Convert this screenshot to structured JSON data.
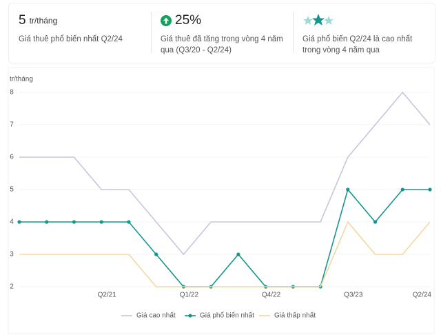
{
  "cards": [
    {
      "value": "5",
      "unit": "tr/tháng",
      "text": "Giá thuê phổ biến nhất Q2/24"
    },
    {
      "value": "25%",
      "text": "Giá thuê đã tăng trong vòng 4 năm qua (Q3/20 - Q2/24)"
    },
    {
      "text": "Giá phổ biến Q2/24 là cao nhất trong vòng 4 năm qua"
    }
  ],
  "chart_data": {
    "type": "line",
    "y_label": "tr/tháng",
    "categories": [
      null,
      null,
      null,
      "Q2/21",
      null,
      null,
      "Q1/22",
      null,
      null,
      "Q4/22",
      null,
      null,
      "Q3/23",
      null,
      null,
      "Q2/24"
    ],
    "series": [
      {
        "name": "Giá cao nhất",
        "color": "#cbc3de",
        "values": [
          6,
          6,
          6,
          5,
          5,
          4,
          3,
          4,
          4,
          4,
          4,
          4,
          6,
          7,
          8,
          7
        ]
      },
      {
        "name": "Giá phổ biến nhất",
        "color": "#13968f",
        "markers": true,
        "values": [
          4,
          4,
          4,
          4,
          4,
          3,
          2,
          2,
          3,
          2,
          2,
          2,
          5,
          4,
          5,
          5
        ]
      },
      {
        "name": "Giá thấp nhất",
        "color": "#f6d6a0",
        "values": [
          3,
          3,
          3,
          3,
          3,
          2,
          2,
          2,
          2,
          2,
          2,
          2,
          4,
          3,
          3,
          4
        ]
      }
    ],
    "ylim": [
      2,
      8
    ],
    "yticks": [
      2,
      3,
      4,
      5,
      6,
      7,
      8
    ],
    "grid": true
  }
}
